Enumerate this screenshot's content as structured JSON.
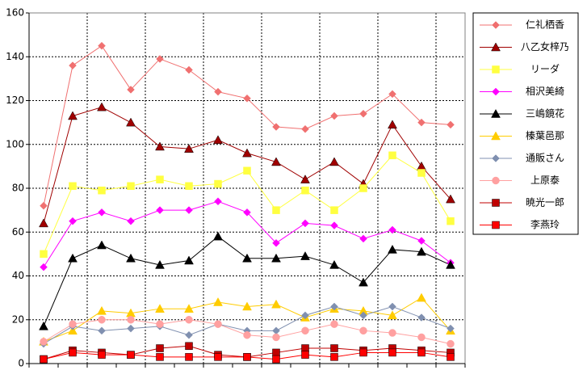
{
  "chart_data": {
    "type": "line",
    "categories": [
      null,
      null,
      null,
      null,
      null,
      null,
      null,
      null,
      null,
      null,
      null,
      null,
      null,
      null,
      null
    ],
    "ylim": [
      0,
      160
    ],
    "yticks": [
      0,
      20,
      40,
      60,
      80,
      100,
      120,
      140,
      160
    ],
    "grid": true,
    "legend": "right",
    "series": [
      {
        "name": "仁礼栖香",
        "color": "#f07070",
        "marker": "diamond",
        "values": [
          72,
          136,
          145,
          125,
          139,
          134,
          124,
          121,
          108,
          107,
          113,
          114,
          123,
          110,
          109
        ]
      },
      {
        "name": "八乙女梓乃",
        "color": "#a00000",
        "marker": "triangle",
        "values": [
          64,
          113,
          117,
          110,
          99,
          98,
          102,
          96,
          92,
          84,
          92,
          82,
          109,
          90,
          75
        ]
      },
      {
        "name": "リーダ",
        "color": "#ffff40",
        "marker": "square",
        "values": [
          50,
          81,
          79,
          81,
          84,
          81,
          82,
          88,
          70,
          79,
          70,
          80,
          95,
          87,
          65
        ]
      },
      {
        "name": "相沢美綺",
        "color": "#ff00ff",
        "marker": "diamond",
        "values": [
          44,
          65,
          69,
          65,
          70,
          70,
          74,
          69,
          55,
          64,
          63,
          57,
          61,
          56,
          46
        ]
      },
      {
        "name": "三嶋鏡花",
        "color": "#000000",
        "marker": "triangle",
        "values": [
          17,
          48,
          54,
          48,
          45,
          47,
          58,
          48,
          48,
          49,
          45,
          37,
          52,
          51,
          45
        ]
      },
      {
        "name": "榛葉邑那",
        "color": "#ffcc00",
        "marker": "triangle",
        "values": [
          10,
          15,
          24,
          23,
          25,
          25,
          28,
          26,
          27,
          21,
          25,
          24,
          22,
          30,
          15
        ]
      },
      {
        "name": "通販さん",
        "color": "#8090b0",
        "marker": "diamond",
        "values": [
          9,
          17,
          15,
          16,
          17,
          13,
          18,
          15,
          15,
          22,
          26,
          22,
          26,
          21,
          16
        ]
      },
      {
        "name": "上原泰",
        "color": "#ffa0a0",
        "marker": "circle",
        "values": [
          10,
          18,
          20,
          20,
          18,
          20,
          18,
          13,
          12,
          15,
          18,
          15,
          14,
          12,
          9
        ]
      },
      {
        "name": "暁光一郎",
        "color": "#c00000",
        "marker": "square",
        "values": [
          2,
          6,
          5,
          4,
          7,
          8,
          4,
          3,
          5,
          7,
          7,
          6,
          7,
          6,
          5
        ]
      },
      {
        "name": "李燕玲",
        "color": "#ff0000",
        "marker": "square",
        "values": [
          2,
          5,
          4,
          4,
          3,
          3,
          3,
          3,
          2,
          4,
          3,
          5,
          5,
          5,
          3
        ]
      }
    ]
  }
}
